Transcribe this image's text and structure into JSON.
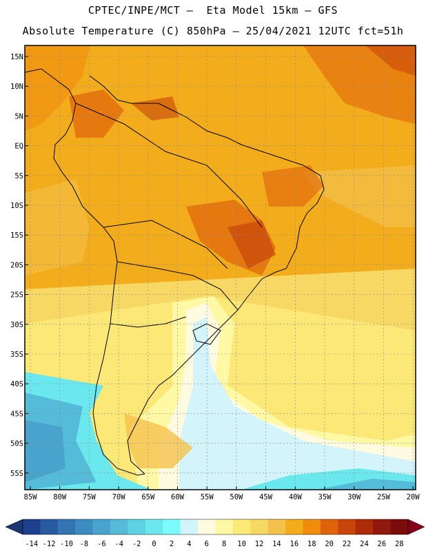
{
  "header": {
    "line1": "CPTEC/INPE/MCT –  Eta Model 15km – GFS",
    "line2": "Absolute Temperature (C) 850hPa – 25/04/2021 12UTC fct=51h"
  },
  "map": {
    "lat_labels": [
      "15N",
      "10N",
      "5N",
      "EQ",
      "5S",
      "10S",
      "15S",
      "20S",
      "25S",
      "30S",
      "35S",
      "40S",
      "45S",
      "50S",
      "55S"
    ],
    "lon_labels": [
      "85W",
      "80W",
      "75W",
      "70W",
      "65W",
      "60W",
      "55W",
      "50W",
      "45W",
      "40W",
      "35W",
      "30W",
      "25W",
      "20W"
    ]
  },
  "colorbar": {
    "labels": [
      "-14",
      "-12",
      "-10",
      "-8",
      "-6",
      "-4",
      "-2",
      "0",
      "2",
      "4",
      "6",
      "8",
      "10",
      "12",
      "14",
      "16",
      "18",
      "20",
      "22",
      "24",
      "26",
      "28"
    ],
    "colors": [
      "#1c3f8e",
      "#285aa0",
      "#3374b3",
      "#3d8cc1",
      "#48a4cd",
      "#54bcd9",
      "#5cd2e4",
      "#6ae8ee",
      "#7afcfc",
      "#d4f4fc",
      "#fffae0",
      "#fff8a4",
      "#fcea78",
      "#f8d864",
      "#f4c24c",
      "#f2ac1c",
      "#f08c0c",
      "#e0620a",
      "#c8440a",
      "#ac2c08",
      "#90180c",
      "#7a0c0c"
    ],
    "low_color": "#1c3672",
    "high_color": "#86001e"
  }
}
